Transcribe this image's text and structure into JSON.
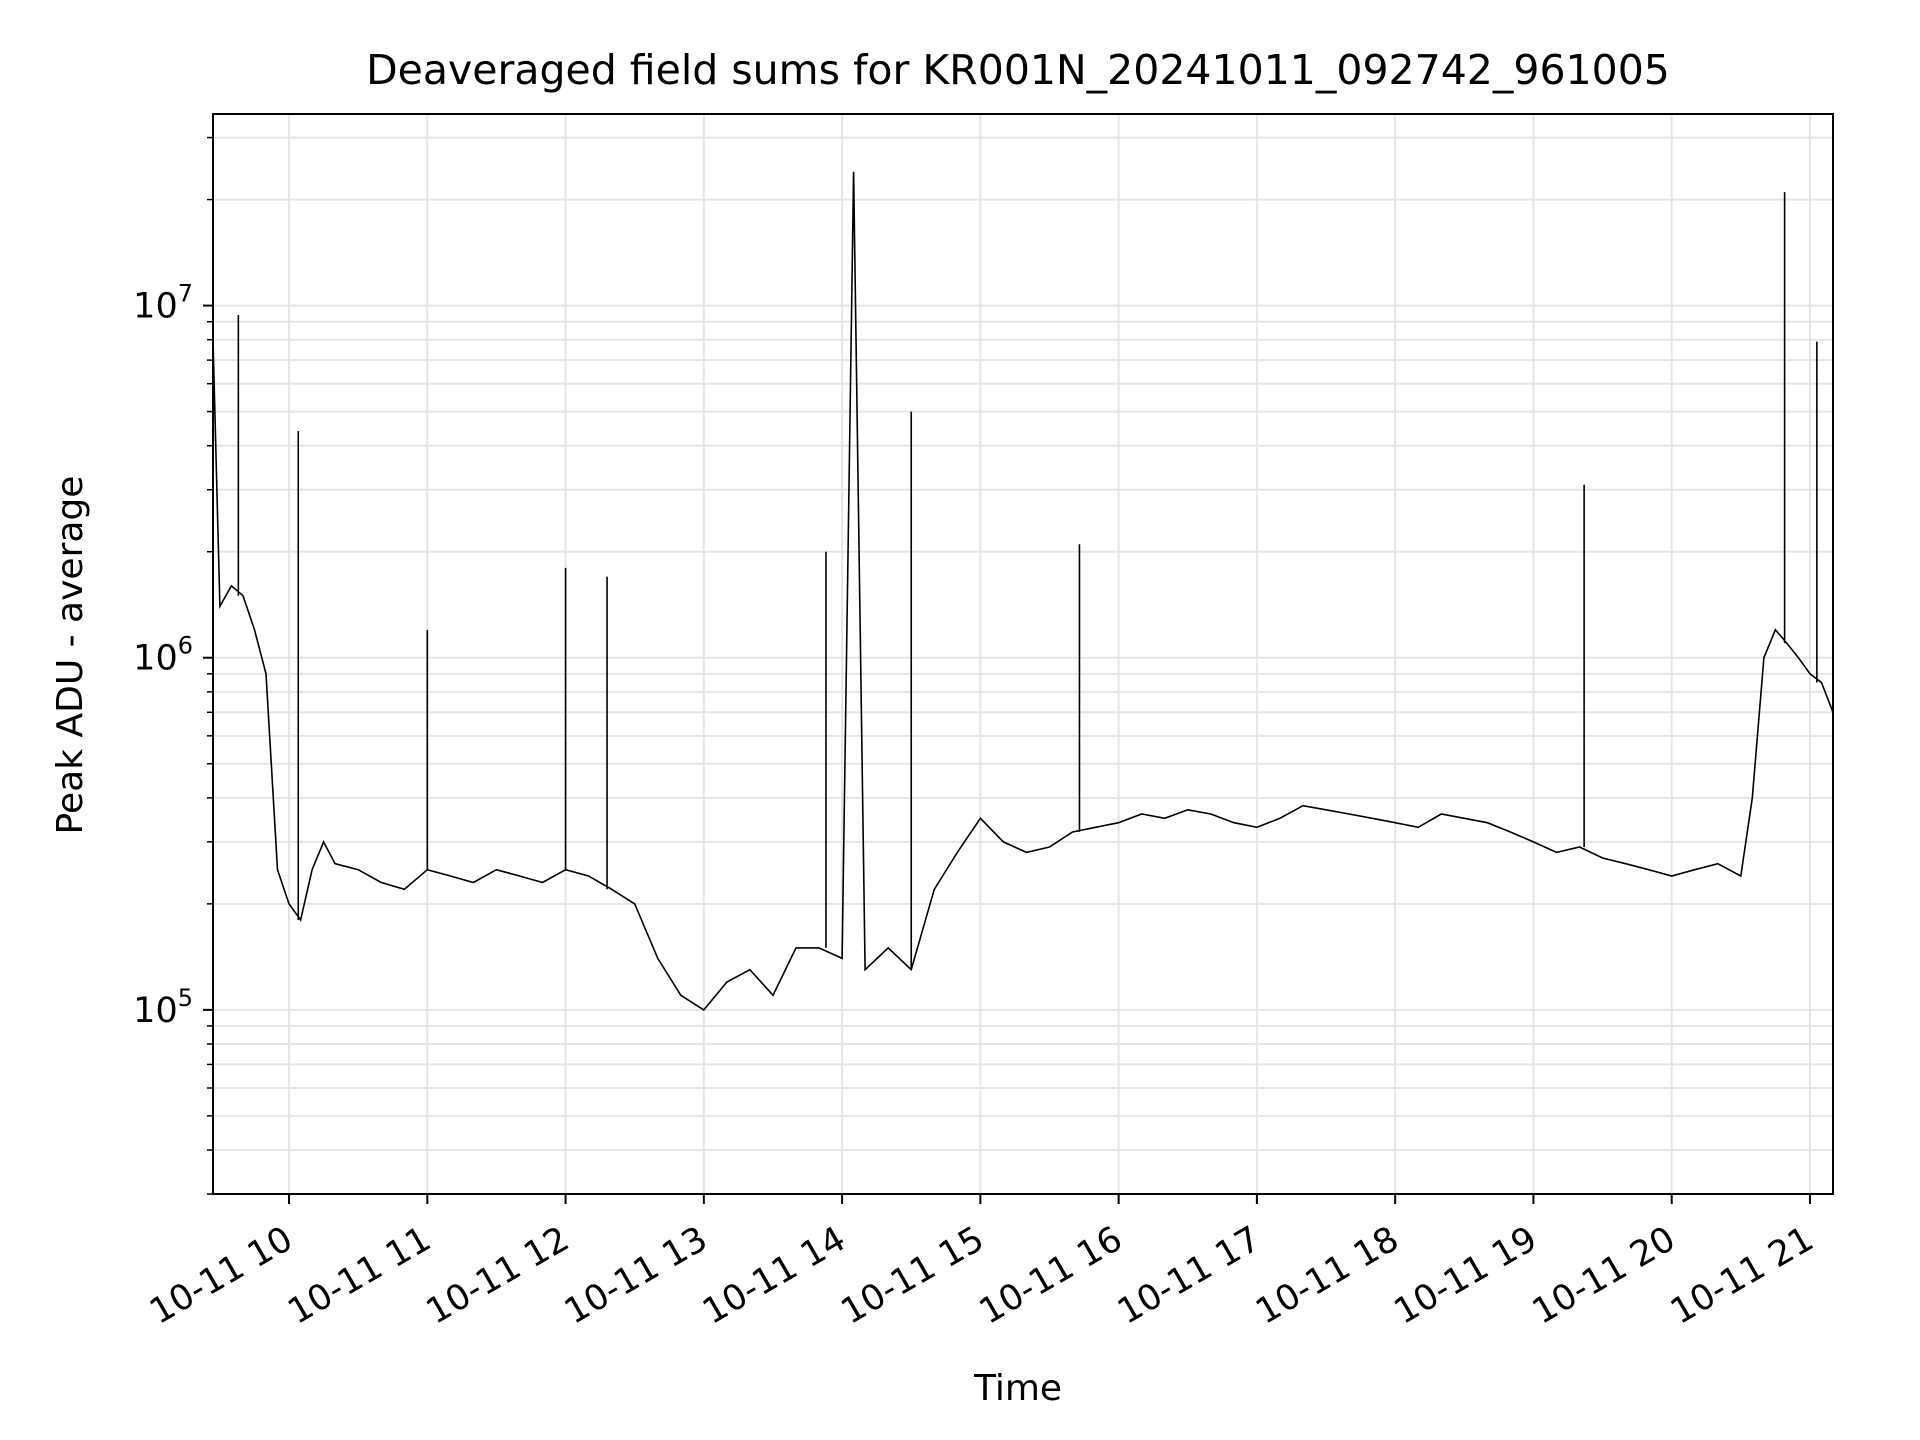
{
  "chart_data": {
    "type": "line",
    "title": "Deaveraged field sums for KR001N_20241011_092742_961005",
    "xlabel": "Time",
    "ylabel": "Peak ADU - average",
    "yscale": "log",
    "ylim": [
      30000,
      35000000
    ],
    "xlim": [
      "2024-10-11 09:27",
      "2024-10-11 21:10"
    ],
    "grid": true,
    "line_color": "#000000",
    "grid_color": "#e5e5e5",
    "x_ticks": [
      {
        "value": "2024-10-11 10:00",
        "label": "10-11 10"
      },
      {
        "value": "2024-10-11 11:00",
        "label": "10-11 11"
      },
      {
        "value": "2024-10-11 12:00",
        "label": "10-11 12"
      },
      {
        "value": "2024-10-11 13:00",
        "label": "10-11 13"
      },
      {
        "value": "2024-10-11 14:00",
        "label": "10-11 14"
      },
      {
        "value": "2024-10-11 15:00",
        "label": "10-11 15"
      },
      {
        "value": "2024-10-11 16:00",
        "label": "10-11 16"
      },
      {
        "value": "2024-10-11 17:00",
        "label": "10-11 17"
      },
      {
        "value": "2024-10-11 18:00",
        "label": "10-11 18"
      },
      {
        "value": "2024-10-11 19:00",
        "label": "10-11 19"
      },
      {
        "value": "2024-10-11 20:00",
        "label": "10-11 20"
      },
      {
        "value": "2024-10-11 21:00",
        "label": "10-11 21"
      }
    ],
    "y_ticks": [
      {
        "value": 100000,
        "base": "10",
        "exp": "5"
      },
      {
        "value": 1000000,
        "base": "10",
        "exp": "6"
      },
      {
        "value": 10000000,
        "base": "10",
        "exp": "7"
      }
    ],
    "series": [
      {
        "x": [
          "2024-10-11 09:27",
          "2024-10-11 09:30",
          "2024-10-11 09:35",
          "2024-10-11 09:40",
          "2024-10-11 09:45",
          "2024-10-11 09:50",
          "2024-10-11 09:55",
          "2024-10-11 10:00",
          "2024-10-11 10:05",
          "2024-10-11 10:10",
          "2024-10-11 10:15",
          "2024-10-11 10:20",
          "2024-10-11 10:30",
          "2024-10-11 10:40",
          "2024-10-11 10:50",
          "2024-10-11 11:00",
          "2024-10-11 11:10",
          "2024-10-11 11:20",
          "2024-10-11 11:30",
          "2024-10-11 11:40",
          "2024-10-11 11:50",
          "2024-10-11 12:00",
          "2024-10-11 12:10",
          "2024-10-11 12:20",
          "2024-10-11 12:30",
          "2024-10-11 12:40",
          "2024-10-11 12:50",
          "2024-10-11 13:00",
          "2024-10-11 13:10",
          "2024-10-11 13:20",
          "2024-10-11 13:30",
          "2024-10-11 13:40",
          "2024-10-11 13:50",
          "2024-10-11 14:00",
          "2024-10-11 14:05",
          "2024-10-11 14:10",
          "2024-10-11 14:20",
          "2024-10-11 14:30",
          "2024-10-11 14:40",
          "2024-10-11 14:50",
          "2024-10-11 15:00",
          "2024-10-11 15:10",
          "2024-10-11 15:20",
          "2024-10-11 15:30",
          "2024-10-11 15:40",
          "2024-10-11 15:50",
          "2024-10-11 16:00",
          "2024-10-11 16:10",
          "2024-10-11 16:20",
          "2024-10-11 16:30",
          "2024-10-11 16:40",
          "2024-10-11 16:50",
          "2024-10-11 17:00",
          "2024-10-11 17:10",
          "2024-10-11 17:20",
          "2024-10-11 17:30",
          "2024-10-11 17:40",
          "2024-10-11 17:50",
          "2024-10-11 18:00",
          "2024-10-11 18:10",
          "2024-10-11 18:20",
          "2024-10-11 18:30",
          "2024-10-11 18:40",
          "2024-10-11 18:50",
          "2024-10-11 19:00",
          "2024-10-11 19:10",
          "2024-10-11 19:20",
          "2024-10-11 19:30",
          "2024-10-11 19:40",
          "2024-10-11 19:50",
          "2024-10-11 20:00",
          "2024-10-11 20:10",
          "2024-10-11 20:20",
          "2024-10-11 20:30",
          "2024-10-11 20:35",
          "2024-10-11 20:40",
          "2024-10-11 20:45",
          "2024-10-11 20:50",
          "2024-10-11 20:55",
          "2024-10-11 21:00",
          "2024-10-11 21:05",
          "2024-10-11 21:10"
        ],
        "values": [
          8000000,
          1400000,
          1600000,
          1500000,
          1200000,
          900000,
          250000,
          200000,
          180000,
          250000,
          300000,
          260000,
          250000,
          230000,
          220000,
          250000,
          240000,
          230000,
          250000,
          240000,
          230000,
          250000,
          240000,
          220000,
          200000,
          140000,
          110000,
          100000,
          120000,
          130000,
          110000,
          150000,
          150000,
          140000,
          24000000,
          130000,
          150000,
          130000,
          220000,
          280000,
          350000,
          300000,
          280000,
          290000,
          320000,
          330000,
          340000,
          360000,
          350000,
          370000,
          360000,
          340000,
          330000,
          350000,
          380000,
          370000,
          360000,
          350000,
          340000,
          330000,
          360000,
          350000,
          340000,
          320000,
          300000,
          280000,
          290000,
          270000,
          260000,
          250000,
          240000,
          250000,
          260000,
          240000,
          400000,
          1000000,
          1200000,
          1100000,
          1000000,
          900000,
          850000,
          700000
        ]
      }
    ],
    "spikes": [
      {
        "x": "2024-10-11 09:38",
        "value": 9400000
      },
      {
        "x": "2024-10-11 10:04",
        "value": 4400000
      },
      {
        "x": "2024-10-11 11:00",
        "value": 1200000
      },
      {
        "x": "2024-10-11 12:00",
        "value": 1800000
      },
      {
        "x": "2024-10-11 12:18",
        "value": 1700000
      },
      {
        "x": "2024-10-11 13:53",
        "value": 2000000
      },
      {
        "x": "2024-10-11 14:06",
        "value": 24000000
      },
      {
        "x": "2024-10-11 14:30",
        "value": 5000000
      },
      {
        "x": "2024-10-11 15:43",
        "value": 2100000
      },
      {
        "x": "2024-10-11 19:22",
        "value": 3100000
      },
      {
        "x": "2024-10-11 20:49",
        "value": 21000000
      },
      {
        "x": "2024-10-11 21:03",
        "value": 7900000
      }
    ]
  }
}
